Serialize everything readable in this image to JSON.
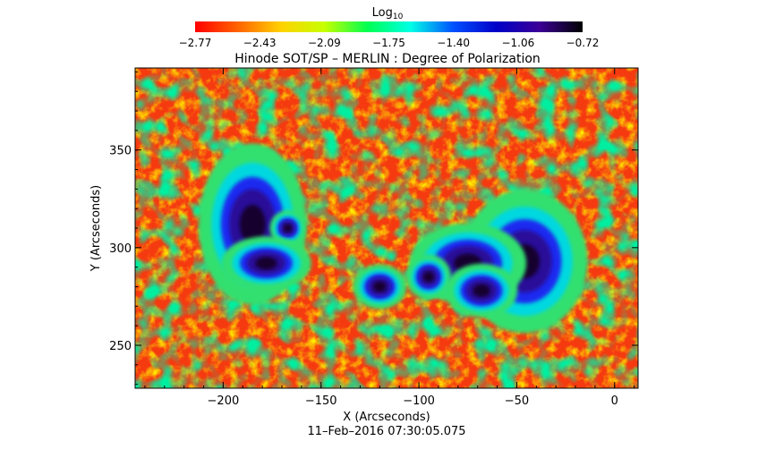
{
  "chart_data": {
    "type": "heatmap",
    "title": "Hinode SOT/SP – MERLIN : Degree of Polarization",
    "xlabel": "X (Arcseconds)",
    "ylabel": "Y (Arcseconds)",
    "timestamp": "11–Feb–2016 07:30:05.075",
    "xlim": [
      -245,
      12
    ],
    "ylim": [
      228,
      392
    ],
    "x_ticks": [
      -200,
      -150,
      -100,
      -50,
      0
    ],
    "x_tick_labels": [
      "−200",
      "−150",
      "−100",
      "−50",
      "0"
    ],
    "y_ticks": [
      250,
      300,
      350
    ],
    "y_tick_labels": [
      "250",
      "300",
      "350"
    ],
    "colorbar": {
      "label_base": "Log",
      "label_sub": "10",
      "range": [
        -2.77,
        -0.72
      ],
      "tick_labels": [
        "−2.77",
        "−2.43",
        "−2.09",
        "−1.75",
        "−1.40",
        "−1.06",
        "−0.72"
      ],
      "colors": [
        "#ff0000",
        "#ff6400",
        "#ffd200",
        "#c8ff00",
        "#00ff50",
        "#00ffe6",
        "#0050ff",
        "#0000c8",
        "#3c0096",
        "#000000"
      ]
    },
    "features": [
      {
        "kind": "umbra",
        "x": -185,
        "y": 312,
        "rx": 12,
        "ry": 18
      },
      {
        "kind": "umbra",
        "x": -167,
        "y": 310,
        "rx": 4,
        "ry": 4
      },
      {
        "kind": "umbra",
        "x": -178,
        "y": 292,
        "rx": 10,
        "ry": 6
      },
      {
        "kind": "umbra",
        "x": -46,
        "y": 293,
        "rx": 14,
        "ry": 16
      },
      {
        "kind": "umbra",
        "x": -75,
        "y": 292,
        "rx": 13,
        "ry": 9
      },
      {
        "kind": "umbra",
        "x": -68,
        "y": 278,
        "rx": 8,
        "ry": 6
      },
      {
        "kind": "umbra",
        "x": -120,
        "y": 280,
        "rx": 6,
        "ry": 5
      },
      {
        "kind": "umbra",
        "x": -95,
        "y": 285,
        "rx": 5,
        "ry": 5
      }
    ]
  }
}
